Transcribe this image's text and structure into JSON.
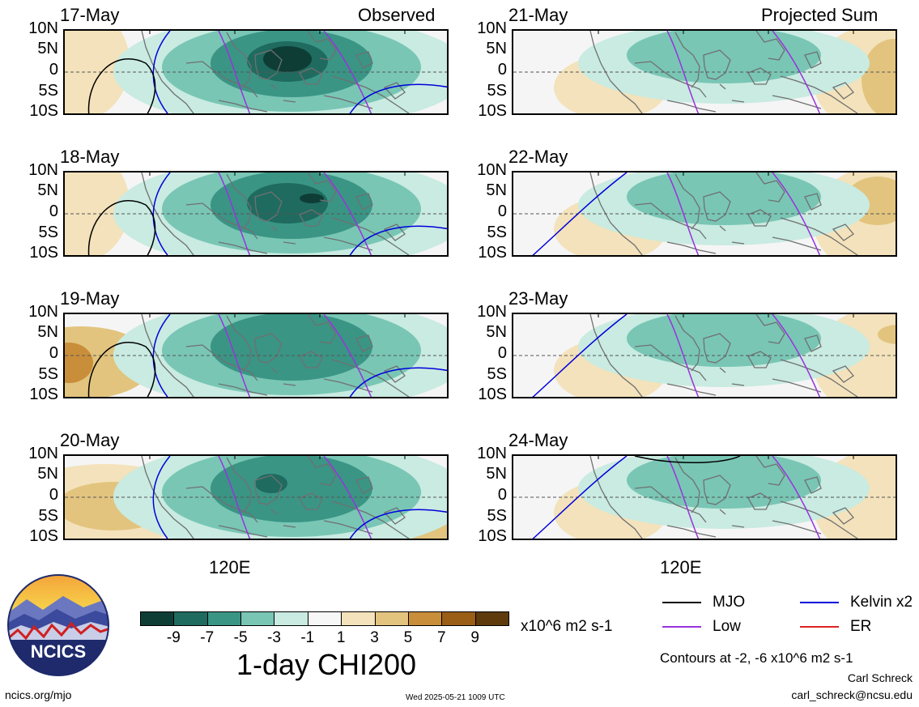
{
  "headers": {
    "left": "Observed",
    "right": "Projected Sum"
  },
  "lat_labels": [
    "10N",
    "5N",
    "0",
    "5S",
    "10S"
  ],
  "lon_label": "120E",
  "panels": [
    {
      "date": "17-May",
      "variant": "obs"
    },
    {
      "date": "21-May",
      "variant": "proj"
    },
    {
      "date": "18-May",
      "variant": "obs"
    },
    {
      "date": "22-May",
      "variant": "proj"
    },
    {
      "date": "19-May",
      "variant": "obs"
    },
    {
      "date": "23-May",
      "variant": "proj"
    },
    {
      "date": "20-May",
      "variant": "obs"
    },
    {
      "date": "24-May",
      "variant": "proj"
    }
  ],
  "colorbar": {
    "title": "1-day CHI200",
    "units": "x10^6 m2 s-1",
    "tick_labels": [
      "-9",
      "-7",
      "-5",
      "-3",
      "-1",
      "1",
      "3",
      "5",
      "7",
      "9"
    ],
    "colors": [
      "#0e3d36",
      "#1f6b60",
      "#3a9585",
      "#79c6b5",
      "#c9ebe1",
      "#f7f7f7",
      "#f3e2bb",
      "#e2c47e",
      "#c98e3a",
      "#9a5e17",
      "#5e3a0d"
    ]
  },
  "legend": {
    "items": [
      {
        "label": "MJO",
        "color": "#000000"
      },
      {
        "label": "Kelvin x2",
        "color": "#0000dd"
      },
      {
        "label": "Low",
        "color": "#9933dd"
      },
      {
        "label": "ER",
        "color": "#dd2222"
      }
    ],
    "contours_note": "Contours at -2, -6 x10^6 m2 s-1"
  },
  "footer": {
    "site": "ncics.org/mjo",
    "timestamp": "Wed 2025-05-21 1009 UTC",
    "author": "Carl Schreck",
    "email": "carl_schreck@ncsu.edu",
    "logo_text": "NCICS"
  }
}
